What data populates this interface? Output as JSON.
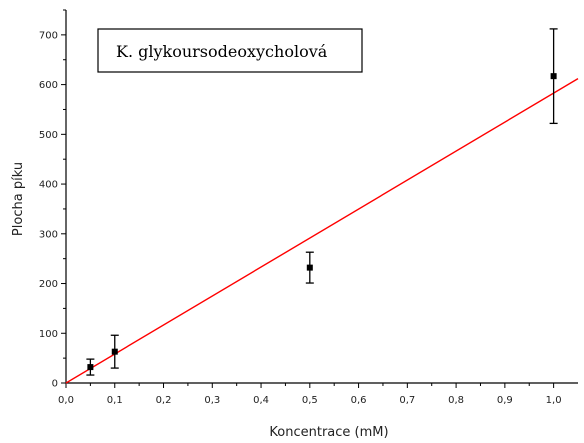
{
  "chart_data": {
    "type": "scatter",
    "title": "",
    "xlabel": "Koncentrace (mM)",
    "ylabel": "Plocha píku",
    "xlim": [
      0.0,
      1.05
    ],
    "ylim": [
      0,
      750
    ],
    "x_ticks": [
      "0,0",
      "0,1",
      "0,2",
      "0,3",
      "0,4",
      "0,5",
      "0,6",
      "0,7",
      "0,8",
      "0,9",
      "1,0"
    ],
    "y_ticks": [
      "0",
      "100",
      "200",
      "300",
      "400",
      "500",
      "600",
      "700"
    ],
    "grid": false,
    "annotation": "K. glykoursodeoxycholová",
    "points": [
      {
        "x": 0.05,
        "y": 32,
        "err": 16
      },
      {
        "x": 0.1,
        "y": 63,
        "err": 33
      },
      {
        "x": 0.5,
        "y": 232,
        "err": 31
      },
      {
        "x": 1.0,
        "y": 617,
        "err": 95
      }
    ],
    "fit_line": {
      "x": [
        0.0,
        1.05
      ],
      "y": [
        0,
        612
      ]
    }
  },
  "colors": {
    "points": "#000000",
    "fit_line": "#ff0000",
    "axis": "#000000",
    "annotation_border": "#000000"
  }
}
